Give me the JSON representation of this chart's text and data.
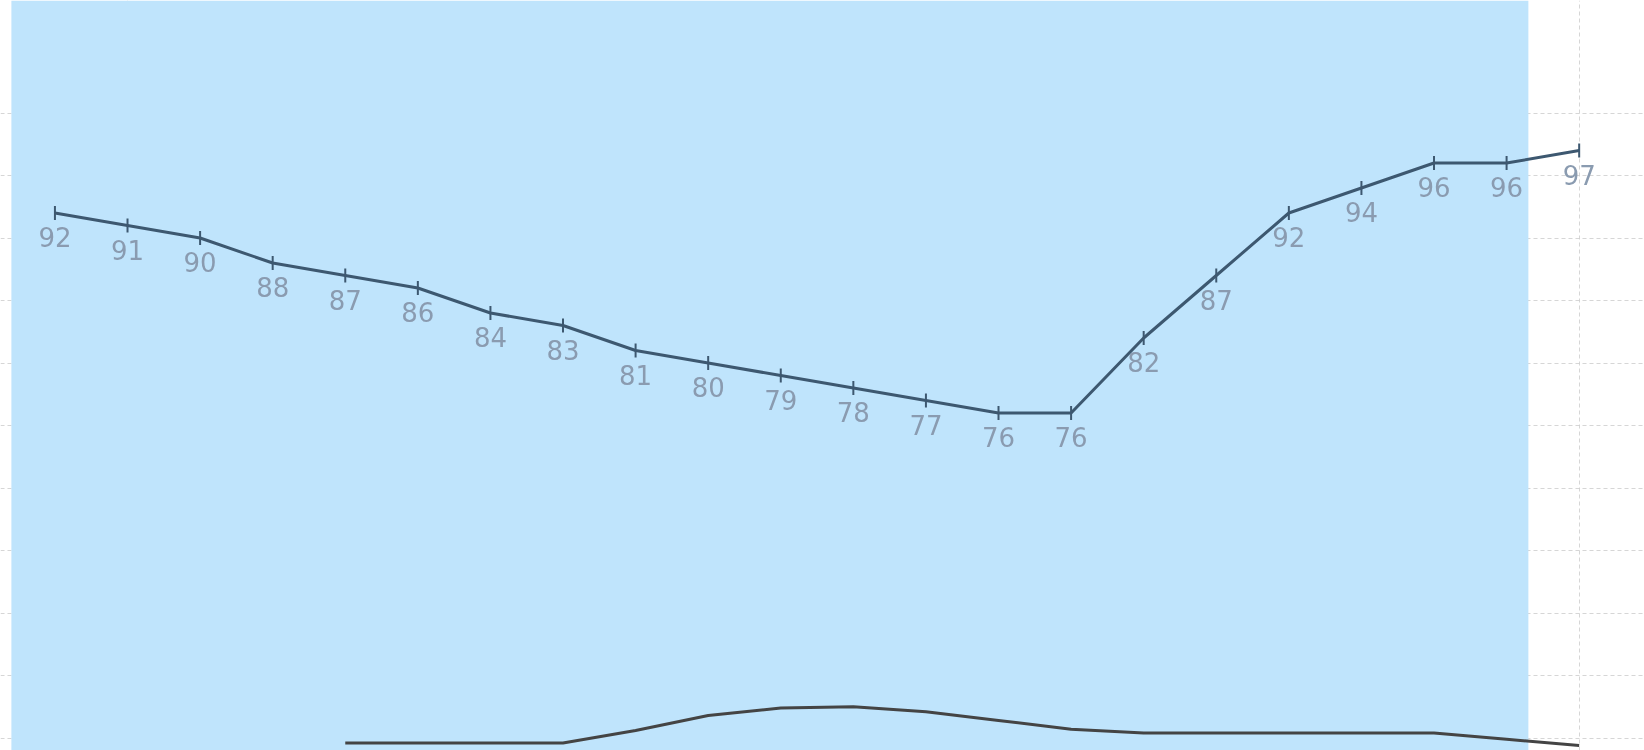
{
  "chart_data": {
    "type": "line",
    "categories": [
      null,
      null,
      null,
      null,
      null,
      null,
      null,
      null,
      null,
      null,
      null,
      null,
      null,
      null,
      null,
      null,
      null,
      null,
      null,
      null,
      null,
      null
    ],
    "series": [
      {
        "color": "#3d5870",
        "values": [
          92,
          91,
          90,
          88,
          87,
          86,
          84,
          83,
          81,
          80,
          79,
          78,
          77,
          76,
          76,
          82,
          87,
          92,
          94,
          96,
          96,
          97
        ],
        "value_labels": [
          "92",
          "91",
          "90",
          "88",
          "87",
          "86",
          "84",
          "83",
          "81",
          "80",
          "79",
          "78",
          "77",
          "76",
          "76",
          "82",
          "87",
          "92",
          "94",
          "96",
          "96",
          "97"
        ]
      },
      {
        "color": "#444444",
        "values": [
          null,
          null,
          null,
          null,
          49.6,
          49.6,
          49.6,
          49.6,
          50.6,
          51.8,
          52.4,
          52.5,
          52.1,
          51.4,
          50.7,
          50.4,
          50.4,
          50.4,
          50.4,
          50.4,
          49.9,
          49.4
        ]
      }
    ],
    "ylim": [
      49,
      109
    ],
    "yticks": [
      {
        "value": 50,
        "label": null
      },
      {
        "value": 55,
        "label": null
      },
      {
        "value": 60,
        "label": null
      },
      {
        "value": 65,
        "label": null
      },
      {
        "value": 70,
        "label": null
      },
      {
        "value": 75,
        "label": null
      },
      {
        "value": 80,
        "label": null
      },
      {
        "value": 85,
        "label": null
      },
      {
        "value": 90,
        "label": null
      },
      {
        "value": 95,
        "label": null
      },
      {
        "value": 100,
        "label": null
      }
    ],
    "grid": true,
    "tick_labels": false,
    "line_style": "solid"
  }
}
